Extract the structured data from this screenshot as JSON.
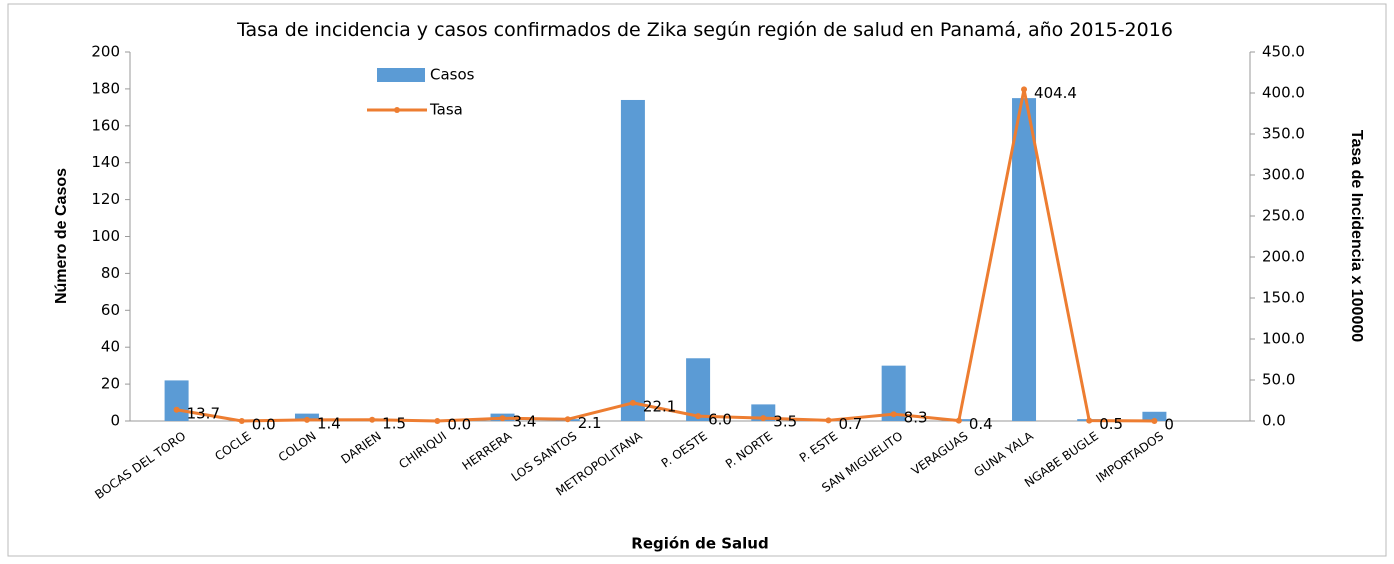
{
  "chart_data": {
    "type": "bar-line",
    "title": "Tasa de incidencia y casos confirmados de Zika según región de salud en Panamá, año 2015-2016",
    "x_label": "Región de Salud",
    "y_label": "Número de Casos",
    "y2_label": "Tasa de Incidencia x 100000",
    "categories": [
      "BOCAS DEL TORO",
      "COCLE",
      "COLON",
      "DARIEN",
      "CHIRIQUI",
      "HERRERA",
      "LOS SANTOS",
      "METROPOLITANA",
      "P. OESTE",
      "P. NORTE",
      "P. ESTE",
      "SAN MIGUELITO",
      "VERAGUAS",
      "GUNA YALA",
      "NGABE BUGLE",
      "IMPORTADOS"
    ],
    "series": [
      {
        "name": "Casos",
        "type": "bar",
        "color": "#5b9bd5",
        "values": [
          22,
          0,
          4,
          0,
          0,
          4,
          1,
          174,
          34,
          9,
          0,
          30,
          1,
          175,
          1,
          5
        ]
      },
      {
        "name": "Tasa",
        "type": "line",
        "axis": "y2",
        "color": "#ed7d31",
        "values": [
          13.7,
          0.0,
          1.4,
          1.5,
          0.0,
          3.4,
          2.1,
          22.1,
          6.0,
          3.5,
          0.7,
          8.3,
          0.4,
          404.4,
          0.5,
          0
        ],
        "value_labels": [
          "13.7",
          "0.0",
          "1.4",
          "1.5",
          "0.0",
          "3.4",
          "2.1",
          "22.1",
          "6.0",
          "3.5",
          "0.7",
          "8.3",
          "0.4",
          "404.4",
          "0.5",
          "0"
        ]
      }
    ],
    "ylim": [
      0,
      200
    ],
    "yticks": [
      0,
      20,
      40,
      60,
      80,
      100,
      120,
      140,
      160,
      180,
      200
    ],
    "y2lim": [
      0,
      450
    ],
    "y2ticks": [
      {
        "value": 0,
        "label": "0.0"
      },
      {
        "value": 50,
        "label": "50.0"
      },
      {
        "value": 100,
        "label": "100.0"
      },
      {
        "value": 150,
        "label": "150.0"
      },
      {
        "value": 200,
        "label": "200.0"
      },
      {
        "value": 250,
        "label": "250.0"
      },
      {
        "value": 300,
        "label": "300.0"
      },
      {
        "value": 350,
        "label": "350.0"
      },
      {
        "value": 400,
        "label": "400.0"
      },
      {
        "value": 450,
        "label": "450.0"
      }
    ]
  }
}
